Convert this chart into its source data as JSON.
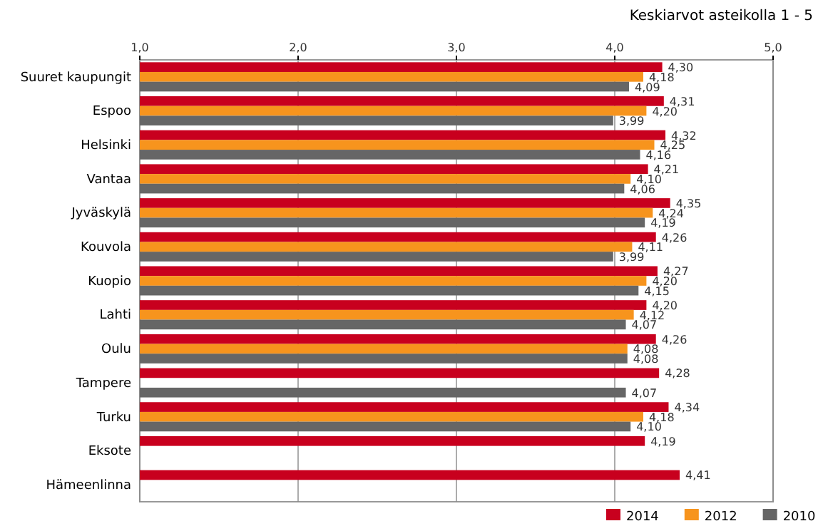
{
  "chart_data": {
    "type": "bar",
    "orientation": "horizontal",
    "title": "Keskiarvot asteikolla 1 - 5",
    "categories": [
      "Suuret kaupungit",
      "Espoo",
      "Helsinki",
      "Vantaa",
      "Jyväskylä",
      "Kouvola",
      "Kuopio",
      "Lahti",
      "Oulu",
      "Tampere",
      "Turku",
      "Eksote",
      "Hämeenlinna"
    ],
    "series": [
      {
        "name": "2014",
        "color": "#c8001e",
        "values": [
          4.3,
          4.31,
          4.32,
          4.21,
          4.35,
          4.26,
          4.27,
          4.2,
          4.26,
          4.28,
          4.34,
          4.19,
          4.41
        ],
        "value_labels": [
          "4,30",
          "4,31",
          "4,32",
          "4,21",
          "4,35",
          "4,26",
          "4,27",
          "4,20",
          "4,26",
          "4,28",
          "4,34",
          "4,19",
          "4,41"
        ]
      },
      {
        "name": "2012",
        "color": "#f7941d",
        "values": [
          4.18,
          4.2,
          4.25,
          4.1,
          4.24,
          4.11,
          4.2,
          4.12,
          4.08,
          null,
          4.18,
          null,
          null
        ],
        "value_labels": [
          "4,18",
          "4,20",
          "4,25",
          "4,10",
          "4,24",
          "4,11",
          "4,20",
          "4,12",
          "4,08",
          null,
          "4,18",
          null,
          null
        ]
      },
      {
        "name": "2010",
        "color": "#666666",
        "values": [
          4.09,
          3.99,
          4.16,
          4.06,
          4.19,
          3.99,
          4.15,
          4.07,
          4.08,
          4.07,
          4.1,
          null,
          null
        ],
        "value_labels": [
          "4,09",
          "3,99",
          "4,16",
          "4,06",
          "4,19",
          "3,99",
          "4,15",
          "4,07",
          "4,08",
          "4,07",
          "4,10",
          null,
          null
        ]
      }
    ],
    "xlim": [
      1,
      5
    ],
    "xticks": [
      {
        "value": 1,
        "label": "1,0"
      },
      {
        "value": 2,
        "label": "2,0"
      },
      {
        "value": 3,
        "label": "3,0"
      },
      {
        "value": 4,
        "label": "4,0"
      },
      {
        "value": 5,
        "label": "5,0"
      }
    ],
    "grid": "x",
    "legend": "bottom right"
  }
}
